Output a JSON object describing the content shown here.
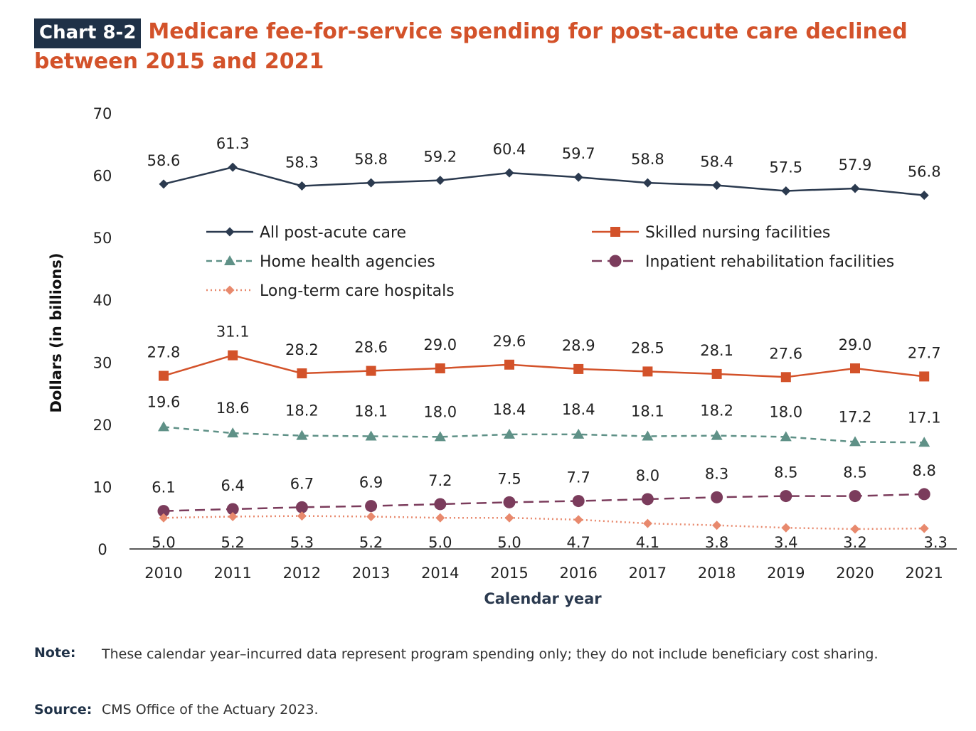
{
  "header": {
    "chart_label": "Chart 8-2",
    "title": "Medicare fee-for-service spending for post-acute care declined between 2015 and 2021"
  },
  "footer": {
    "note_label": "Note:",
    "note_text": "These calendar year–incurred data represent program spending only; they do not include beneficiary cost sharing.",
    "source_label": "Source:",
    "source_text": "CMS Office of the Actuary 2023."
  },
  "chart_data": {
    "type": "line",
    "title": "Medicare fee-for-service spending for post-acute care declined between 2015 and 2021",
    "xlabel": "Calendar year",
    "ylabel": "Dollars (in billions)",
    "ylim": [
      0,
      70
    ],
    "yticks": [
      0,
      10,
      20,
      30,
      40,
      50,
      60,
      70
    ],
    "grid": false,
    "legend_position": "top-center",
    "x": [
      "2010",
      "2011",
      "2012",
      "2013",
      "2014",
      "2015",
      "2016",
      "2017",
      "2018",
      "2019",
      "2020",
      "2021"
    ],
    "series": [
      {
        "name": "All post-acute care",
        "values": [
          58.6,
          61.3,
          58.3,
          58.8,
          59.2,
          60.4,
          59.7,
          58.8,
          58.4,
          57.5,
          57.9,
          56.8
        ],
        "labels": [
          "58.6",
          "61.3",
          "58.3",
          "58.8",
          "59.2",
          "60.4",
          "59.7",
          "58.8",
          "58.4",
          "57.5",
          "57.9",
          "56.8"
        ],
        "color": "#2b3a4f",
        "dash": "solid",
        "marker": "diamond"
      },
      {
        "name": "Skilled nursing facilities",
        "values": [
          27.8,
          31.1,
          28.2,
          28.6,
          29.0,
          29.6,
          28.9,
          28.5,
          28.1,
          27.6,
          29.0,
          27.7
        ],
        "labels": [
          "27.8",
          "31.1",
          "28.2",
          "28.6",
          "29.0",
          "29.6",
          "28.9",
          "28.5",
          "28.1",
          "27.6",
          "29.0",
          "27.7"
        ],
        "color": "#d3522a",
        "dash": "solid",
        "marker": "square"
      },
      {
        "name": "Home health agencies",
        "values": [
          19.6,
          18.6,
          18.2,
          18.1,
          18.0,
          18.4,
          18.4,
          18.1,
          18.2,
          18.0,
          17.2,
          17.1
        ],
        "labels": [
          "19.6",
          "18.6",
          "18.2",
          "18.1",
          "18.0",
          "18.4",
          "18.4",
          "18.1",
          "18.2",
          "18.0",
          "17.2",
          "17.1"
        ],
        "color": "#5f9187",
        "dash": "dashed",
        "marker": "triangle"
      },
      {
        "name": "Inpatient rehabilitation facilities",
        "values": [
          6.1,
          6.4,
          6.7,
          6.9,
          7.2,
          7.5,
          7.7,
          8.0,
          8.3,
          8.5,
          8.5,
          8.8
        ],
        "labels": [
          "6.1",
          "6.4",
          "6.7",
          "6.9",
          "7.2",
          "7.5",
          "7.7",
          "8.0",
          "8.3",
          "8.5",
          "8.5",
          "8.8"
        ],
        "color": "#7b3c5c",
        "dash": "longdash",
        "marker": "circle"
      },
      {
        "name": "Long-term care hospitals",
        "values": [
          5.0,
          5.2,
          5.3,
          5.2,
          5.0,
          5.0,
          4.7,
          4.1,
          3.8,
          3.4,
          3.2,
          3.3
        ],
        "labels": [
          "5.0",
          "5.2",
          "5.3",
          "5.2",
          "5.0",
          "5.0",
          "4.7",
          "4.1",
          "3.8",
          "3.4",
          "3.2",
          "3.3"
        ],
        "color": "#e8896d",
        "dash": "dotted",
        "marker": "diamond"
      }
    ]
  }
}
